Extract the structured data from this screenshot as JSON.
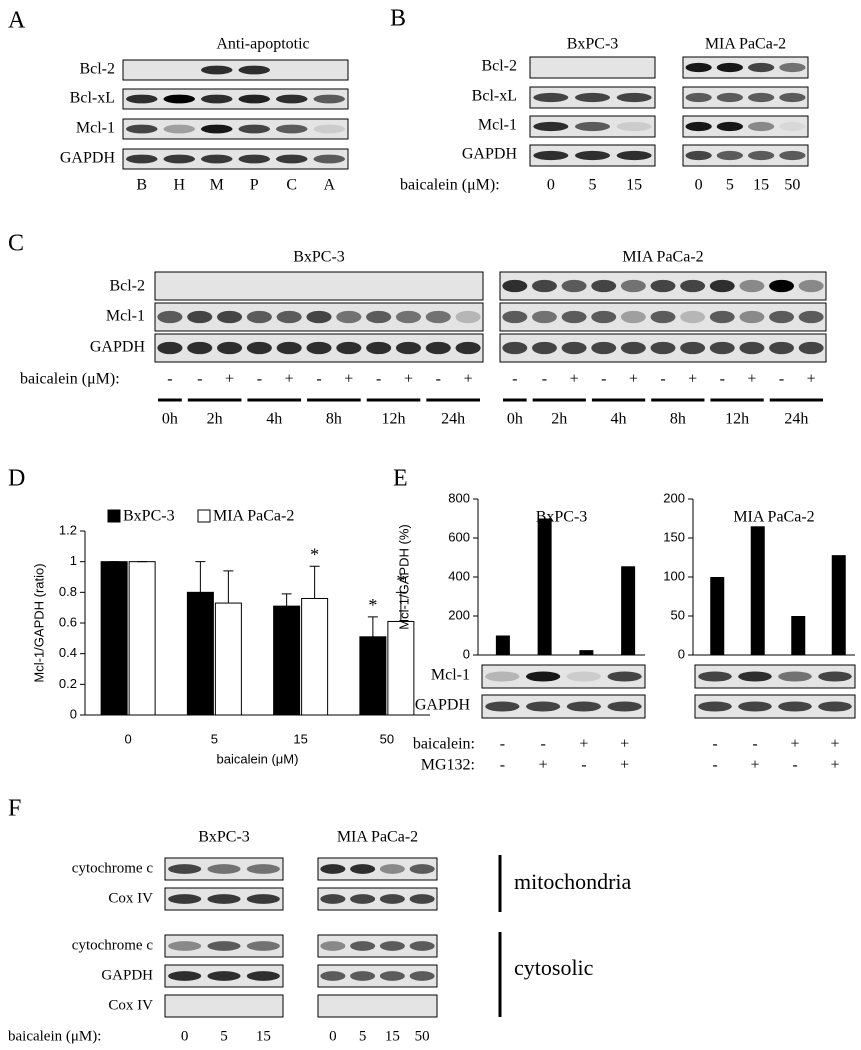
{
  "panels": {
    "A": {
      "label": "A",
      "title": "Anti-apoptotic",
      "rows": [
        "Bcl-2",
        "Bcl-xL",
        "Mcl-1",
        "GAPDH"
      ],
      "lanes": [
        "B",
        "H",
        "M",
        "P",
        "C",
        "A"
      ]
    },
    "B": {
      "label": "B",
      "rows": [
        "Bcl-2",
        "Bcl-xL",
        "Mcl-1",
        "GAPDH"
      ],
      "treatment": "baicalein (μM):",
      "blots": [
        {
          "title": "BxPC-3",
          "lanes": [
            0,
            5,
            15
          ]
        },
        {
          "title": "MIA PaCa-2",
          "lanes": [
            0,
            5,
            15,
            50
          ]
        }
      ]
    },
    "C": {
      "label": "C",
      "rows": [
        "Bcl-2",
        "Mcl-1",
        "GAPDH"
      ],
      "treatment": "baicalein (μM):",
      "lanes": [
        "-",
        "-",
        "+",
        "-",
        "+",
        "-",
        "+",
        "-",
        "+",
        "-",
        "+"
      ],
      "times": [
        "0h",
        "2h",
        "4h",
        "8h",
        "12h",
        "24h"
      ],
      "blots": [
        {
          "title": "BxPC-3"
        },
        {
          "title": "MIA PaCa-2"
        }
      ]
    },
    "D": {
      "label": "D"
    },
    "E": {
      "label": "E",
      "rows": [
        "Mcl-1",
        "GAPDH"
      ],
      "treatments": [
        {
          "name": "baicalein:",
          "lanes": [
            "-",
            "-",
            "+",
            "+"
          ]
        },
        {
          "name": "MG132:",
          "lanes": [
            "-",
            "+",
            "-",
            "+"
          ]
        }
      ]
    },
    "F": {
      "label": "F",
      "rows": [
        "cytochrome c",
        "Cox IV",
        "cytochrome c",
        "GAPDH",
        "Cox IV"
      ],
      "fractions": [
        "mitochondria",
        "cytosolic"
      ],
      "treatment": "baicalein (μM):",
      "blots": [
        {
          "title": "BxPC-3",
          "lanes": [
            0,
            5,
            15
          ]
        },
        {
          "title": "MIA PaCa-2",
          "lanes": [
            0,
            5,
            15,
            50
          ]
        }
      ]
    }
  },
  "chart_data": [
    {
      "type": "bar",
      "ylabel": "Mcl-1/GAPDH (ratio)",
      "xlabel": "baicalein (μM)",
      "categories": [
        "0",
        "5",
        "15",
        "50"
      ],
      "series": [
        {
          "name": "BxPC-3",
          "color": "#000000",
          "values": [
            1,
            0.8,
            0.71,
            0.51
          ],
          "errors": [
            0,
            0.2,
            0.08,
            0.13
          ],
          "annotations": [
            null,
            null,
            null,
            "*"
          ]
        },
        {
          "name": "MIA PaCa-2",
          "color": "#ffffff",
          "values": [
            1,
            0.73,
            0.76,
            0.61
          ],
          "errors": [
            0,
            0.21,
            0.21,
            0.19
          ],
          "annotations": [
            null,
            null,
            "*",
            "*"
          ]
        }
      ],
      "ylim": [
        0,
        1.2
      ],
      "yticks": [
        0,
        0.2,
        0.4,
        0.6,
        0.8,
        1,
        1.2
      ]
    },
    {
      "type": "bar",
      "title": "BxPC-3",
      "ylabel": "Mcl-1/GAPDH (%)",
      "values": [
        100,
        700,
        25,
        455
      ],
      "color": "#000000",
      "ylim": [
        0,
        800
      ],
      "yticks": [
        0,
        200,
        400,
        600,
        800
      ]
    },
    {
      "type": "bar",
      "title": "MIA PaCa-2",
      "values": [
        100,
        165,
        50,
        128
      ],
      "color": "#000000",
      "ylim": [
        0,
        200
      ],
      "yticks": [
        0,
        50,
        100,
        150,
        200
      ]
    }
  ]
}
